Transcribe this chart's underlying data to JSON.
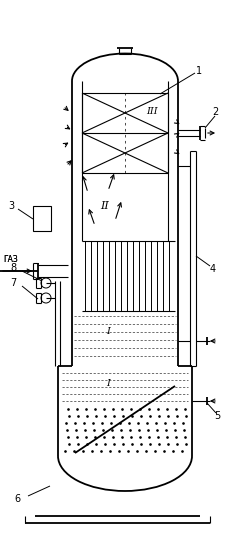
{
  "bg_color": "#ffffff",
  "line_color": "#000000",
  "figsize": [
    2.29,
    5.41
  ],
  "dpi": 100,
  "gas_label": "ГАЗ",
  "zone_I": "I",
  "zone_II": "II",
  "zone_III": "III"
}
